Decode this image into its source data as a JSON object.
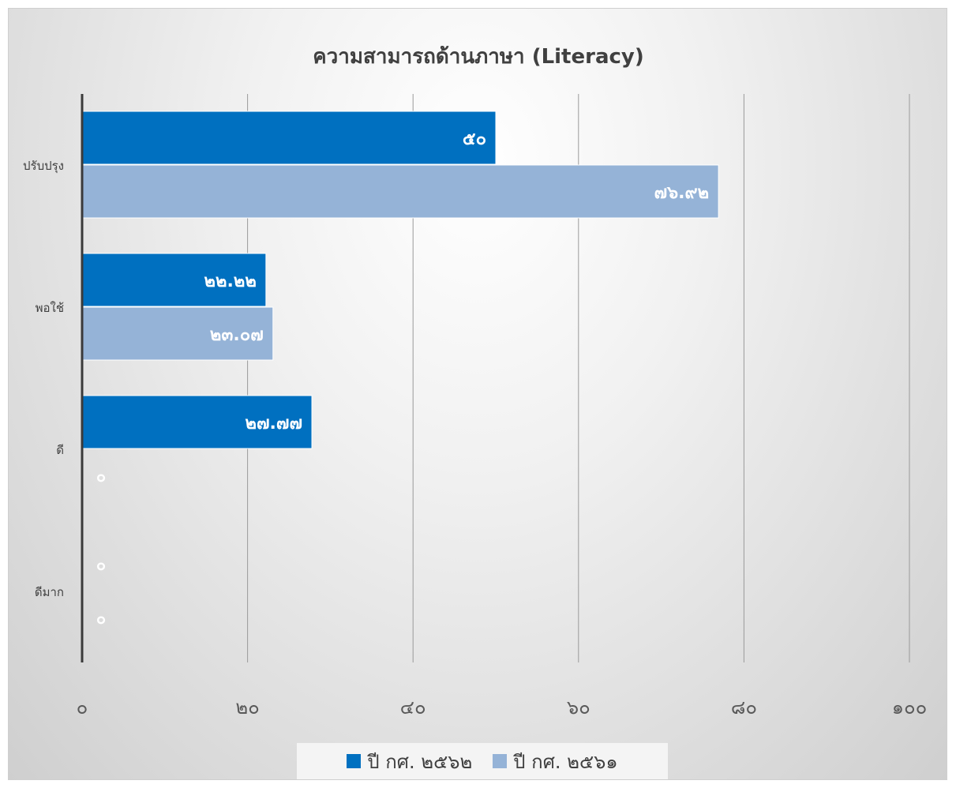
{
  "chart_data": {
    "type": "bar",
    "orientation": "horizontal",
    "title": "ความสามารถด้านภาษา (Literacy)",
    "categories": [
      "ปรับปรุง",
      "พอใช้",
      "ดี",
      "ดีมาก"
    ],
    "series": [
      {
        "name": "ปี กศ. ๒๕๖๒",
        "color": "#0070C0",
        "values": [
          50,
          22.22,
          27.77,
          0
        ],
        "labels": [
          "๕๐",
          "๒๒.๒๒",
          "๒๗.๗๗",
          "๐"
        ]
      },
      {
        "name": "ปี กศ. ๒๕๖๑",
        "color": "#95B3D7",
        "values": [
          76.92,
          23.07,
          0,
          0
        ],
        "labels": [
          "๗๖.๙๒",
          "๒๓.๐๗",
          "๐",
          "๐"
        ]
      }
    ],
    "xlim": [
      0,
      100
    ],
    "xticks": [
      0,
      20,
      40,
      60,
      80,
      100
    ],
    "xtick_labels": [
      "๐",
      "๒๐",
      "๔๐",
      "๖๐",
      "๘๐",
      "๑๐๐"
    ],
    "grid": true,
    "legend_position": "bottom"
  }
}
